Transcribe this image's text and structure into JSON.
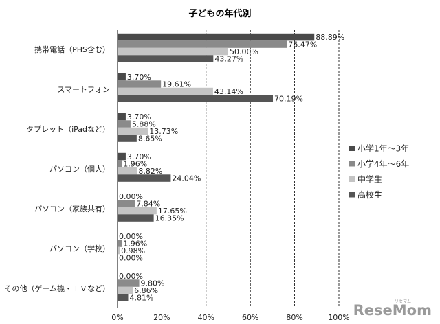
{
  "chart_data": {
    "type": "bar",
    "orientation": "horizontal",
    "title": "子どもの年代別",
    "categories": [
      "携帯電話（PHS含む）",
      "スマートフォン",
      "タブレット（iPadなど）",
      "パソコン（個人）",
      "パソコン（家族共有）",
      "パソコン（学校）",
      "その他（ゲーム機・ＴＶなど）"
    ],
    "series": [
      {
        "name": "小学1年～3年",
        "color": "#4a4a4a",
        "values": [
          88.89,
          3.7,
          3.7,
          3.7,
          0.0,
          0.0,
          0.0
        ],
        "labels": [
          "88.89%",
          "3.70%",
          "3.70%",
          "3.70%",
          "0.00%",
          "0.00%",
          "0.00%"
        ]
      },
      {
        "name": "小学4年～6年",
        "color": "#8a8a8a",
        "values": [
          76.47,
          19.61,
          5.88,
          1.96,
          7.84,
          1.96,
          9.8
        ],
        "labels": [
          "76.47%",
          "19.61%",
          "5.88%",
          "1.96%",
          "7.84%",
          "1.96%",
          "9.80%"
        ]
      },
      {
        "name": "中学生",
        "color": "#c4c4c4",
        "values": [
          50.0,
          43.14,
          13.73,
          8.82,
          17.65,
          0.98,
          6.86
        ],
        "labels": [
          "50.00%",
          "43.14%",
          "13.73%",
          "8.82%",
          "17.65%",
          "0.98%",
          "6.86%"
        ]
      },
      {
        "name": "高校生",
        "color": "#555555",
        "values": [
          43.27,
          70.19,
          8.65,
          24.04,
          16.35,
          0.0,
          4.81
        ],
        "labels": [
          "43.27%",
          "70.19%",
          "8.65%",
          "24.04%",
          "16.35%",
          "0.00%",
          "4.81%"
        ]
      }
    ],
    "xlim": [
      0,
      100
    ],
    "ticks": [
      "0%",
      "20%",
      "40%",
      "60%",
      "80%",
      "100%"
    ],
    "grid": true,
    "legend": "right"
  },
  "watermark": {
    "brand": "ReseMom",
    "kana": "リセマム"
  }
}
